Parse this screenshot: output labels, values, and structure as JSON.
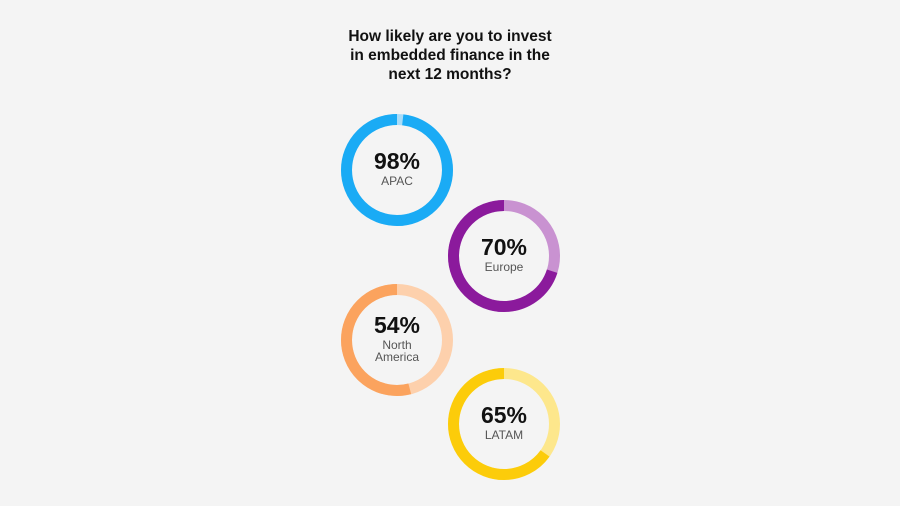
{
  "chart_data": {
    "type": "donut",
    "title_lines": [
      "How likely are you to invest",
      "in embedded finance in the",
      "next 12 months?"
    ],
    "series": [
      {
        "label_lines": [
          "APAC"
        ],
        "value": 98,
        "value_label": "98%",
        "color": "#1aabf5",
        "track_color": "#a9dcf8"
      },
      {
        "label_lines": [
          "Europe"
        ],
        "value": 70,
        "value_label": "70%",
        "color": "#8b1a9c",
        "track_color": "#c992d1"
      },
      {
        "label_lines": [
          "North",
          "America"
        ],
        "value": 54,
        "value_label": "54%",
        "color": "#fba35e",
        "track_color": "#fdd0ac"
      },
      {
        "label_lines": [
          "LATAM"
        ],
        "value": 65,
        "value_label": "65%",
        "color": "#fccc0a",
        "track_color": "#fde78c"
      }
    ]
  }
}
